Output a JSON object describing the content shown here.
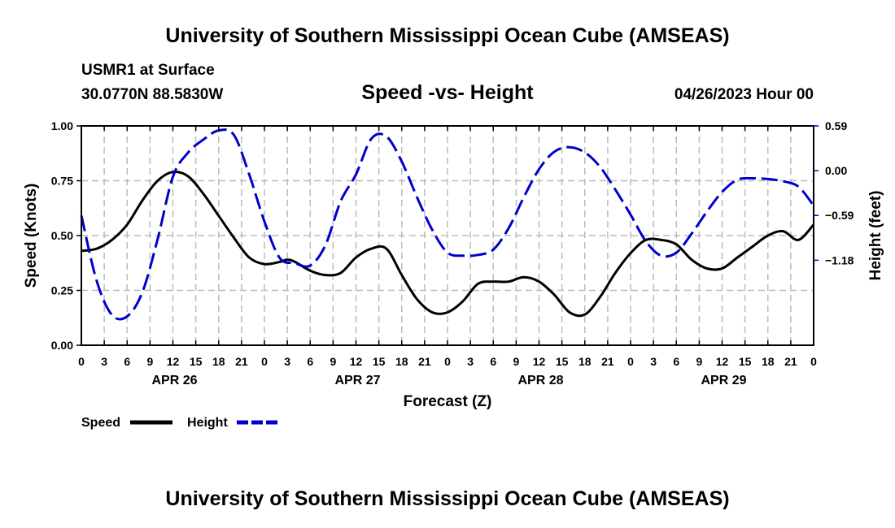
{
  "header": {
    "title_top": "University of Southern Mississippi Ocean Cube (AMSEAS)",
    "station": "USMR1 at Surface",
    "coords": "30.0770N  88.5830W",
    "subtitle": "Speed -vs- Height",
    "datetime": "04/26/2023 Hour 00",
    "title_bottom": "University of Southern Mississippi Ocean Cube (AMSEAS)"
  },
  "chart_data": {
    "type": "line",
    "title": "Speed -vs- Height",
    "xlabel": "Forecast (Z)",
    "ylabel_left": "Speed (Knots)",
    "ylabel_right": "Height (feet)",
    "x_range_hours": [
      0,
      96
    ],
    "x_ticks_hours": [
      0,
      3,
      6,
      9,
      12,
      15,
      18,
      21,
      24,
      27,
      30,
      33,
      36,
      39,
      42,
      45,
      48,
      51,
      54,
      57,
      60,
      63,
      66,
      69,
      72,
      75,
      78,
      81,
      84,
      87,
      90,
      93,
      96
    ],
    "x_tick_labels": [
      "0",
      "3",
      "6",
      "9",
      "12",
      "15",
      "18",
      "21",
      "0",
      "3",
      "6",
      "9",
      "12",
      "15",
      "18",
      "21",
      "0",
      "3",
      "6",
      "9",
      "12",
      "15",
      "18",
      "21",
      "0",
      "3",
      "6",
      "9",
      "12",
      "15",
      "18",
      "21",
      "0"
    ],
    "date_labels": [
      {
        "label": "APR 26",
        "hour": 12
      },
      {
        "label": "APR 27",
        "hour": 36
      },
      {
        "label": "APR 28",
        "hour": 60
      },
      {
        "label": "APR 29",
        "hour": 84
      }
    ],
    "y_left": {
      "range": [
        0,
        1
      ],
      "ticks": [
        0,
        0.25,
        0.5,
        0.75,
        1.0
      ],
      "tick_labels": [
        "0.00",
        "0.25",
        "0.50",
        "0.75",
        "1.00"
      ]
    },
    "y_right": {
      "range": [
        -2.3,
        0.59
      ],
      "ticks": [
        -1.18,
        -0.59,
        0.0,
        0.59
      ],
      "tick_labels": [
        "−1.18",
        "−0.59",
        "0.00",
        "0.59"
      ]
    },
    "grid": true,
    "legend_position": "bottom-left",
    "series": [
      {
        "name": "Speed",
        "axis": "left",
        "color": "#000000",
        "style": "solid",
        "x": [
          0,
          2,
          4,
          6,
          8,
          10,
          12,
          14,
          16,
          18,
          20,
          22,
          24,
          26,
          27,
          28,
          30,
          32,
          34,
          36,
          38,
          40,
          42,
          44,
          46,
          48,
          50,
          52,
          54,
          56,
          58,
          60,
          62,
          64,
          66,
          68,
          70,
          72,
          74,
          76,
          78,
          80,
          82,
          84,
          86,
          88,
          90,
          92,
          94,
          96
        ],
        "values": [
          0.43,
          0.44,
          0.48,
          0.55,
          0.66,
          0.75,
          0.79,
          0.77,
          0.69,
          0.59,
          0.49,
          0.4,
          0.37,
          0.38,
          0.39,
          0.38,
          0.34,
          0.32,
          0.33,
          0.4,
          0.44,
          0.44,
          0.32,
          0.21,
          0.15,
          0.15,
          0.2,
          0.28,
          0.29,
          0.29,
          0.31,
          0.29,
          0.23,
          0.15,
          0.14,
          0.22,
          0.33,
          0.42,
          0.48,
          0.48,
          0.46,
          0.39,
          0.35,
          0.35,
          0.4,
          0.45,
          0.5,
          0.52,
          0.48,
          0.55
        ]
      },
      {
        "name": "Height",
        "axis": "right",
        "color": "#0000cc",
        "style": "dashed",
        "x": [
          0,
          2,
          4,
          6,
          8,
          10,
          12,
          14,
          16,
          18,
          20,
          22,
          24,
          26,
          28,
          30,
          32,
          34,
          36,
          38,
          40,
          42,
          44,
          46,
          48,
          50,
          52,
          54,
          56,
          58,
          60,
          62,
          64,
          66,
          68,
          70,
          72,
          74,
          76,
          78,
          80,
          82,
          84,
          86,
          88,
          90,
          92,
          94,
          96
        ],
        "values": [
          -0.59,
          -1.45,
          -1.9,
          -1.92,
          -1.6,
          -0.9,
          -0.08,
          0.24,
          0.41,
          0.53,
          0.47,
          -0.05,
          -0.67,
          -1.15,
          -1.22,
          -1.25,
          -0.98,
          -0.4,
          -0.05,
          0.42,
          0.45,
          0.12,
          -0.35,
          -0.78,
          -1.08,
          -1.12,
          -1.11,
          -1.04,
          -0.76,
          -0.35,
          0.02,
          0.25,
          0.31,
          0.24,
          0.05,
          -0.25,
          -0.58,
          -0.93,
          -1.12,
          -1.08,
          -0.83,
          -0.54,
          -0.28,
          -0.12,
          -0.1,
          -0.11,
          -0.14,
          -0.21,
          -0.46
        ]
      }
    ]
  }
}
